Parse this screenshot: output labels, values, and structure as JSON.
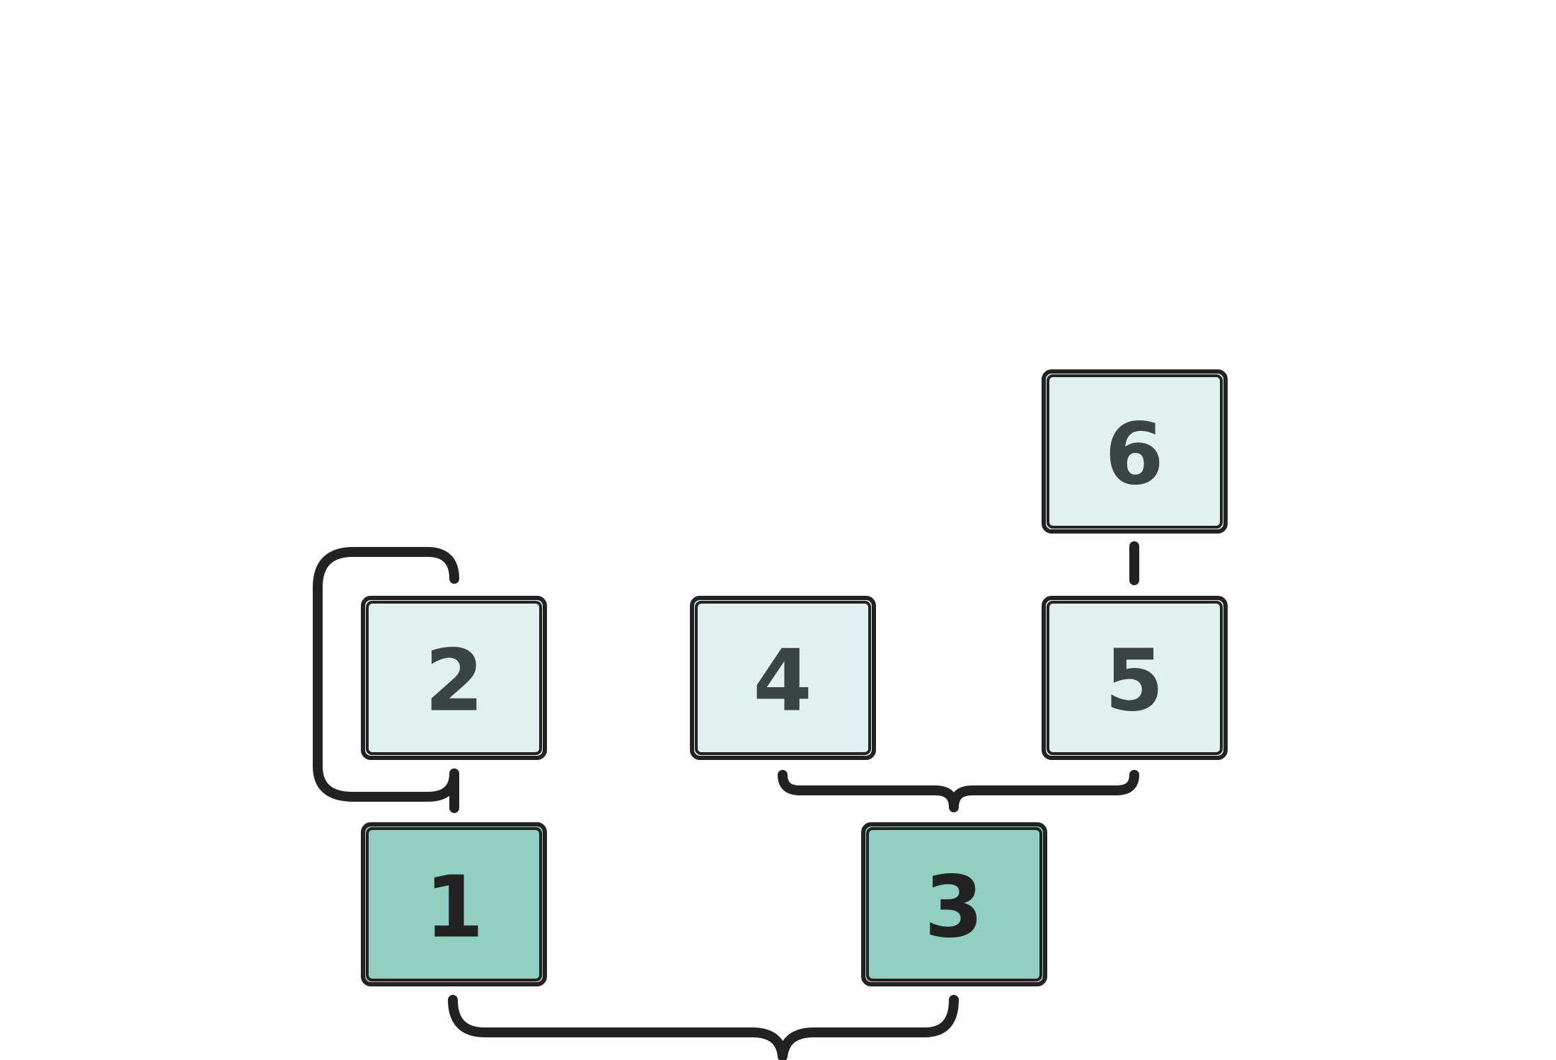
{
  "colors": {
    "root_fill": "#92cfc3",
    "child_fill": "#e1f1ef",
    "stroke": "#222222",
    "root_text": "#222222",
    "child_text": "#3a4443"
  },
  "nodes": {
    "n1": {
      "label": "1",
      "kind": "root"
    },
    "n2": {
      "label": "2",
      "kind": "child"
    },
    "n3": {
      "label": "3",
      "kind": "root"
    },
    "n4": {
      "label": "4",
      "kind": "child"
    },
    "n5": {
      "label": "5",
      "kind": "child"
    },
    "n6": {
      "label": "6",
      "kind": "child"
    }
  }
}
